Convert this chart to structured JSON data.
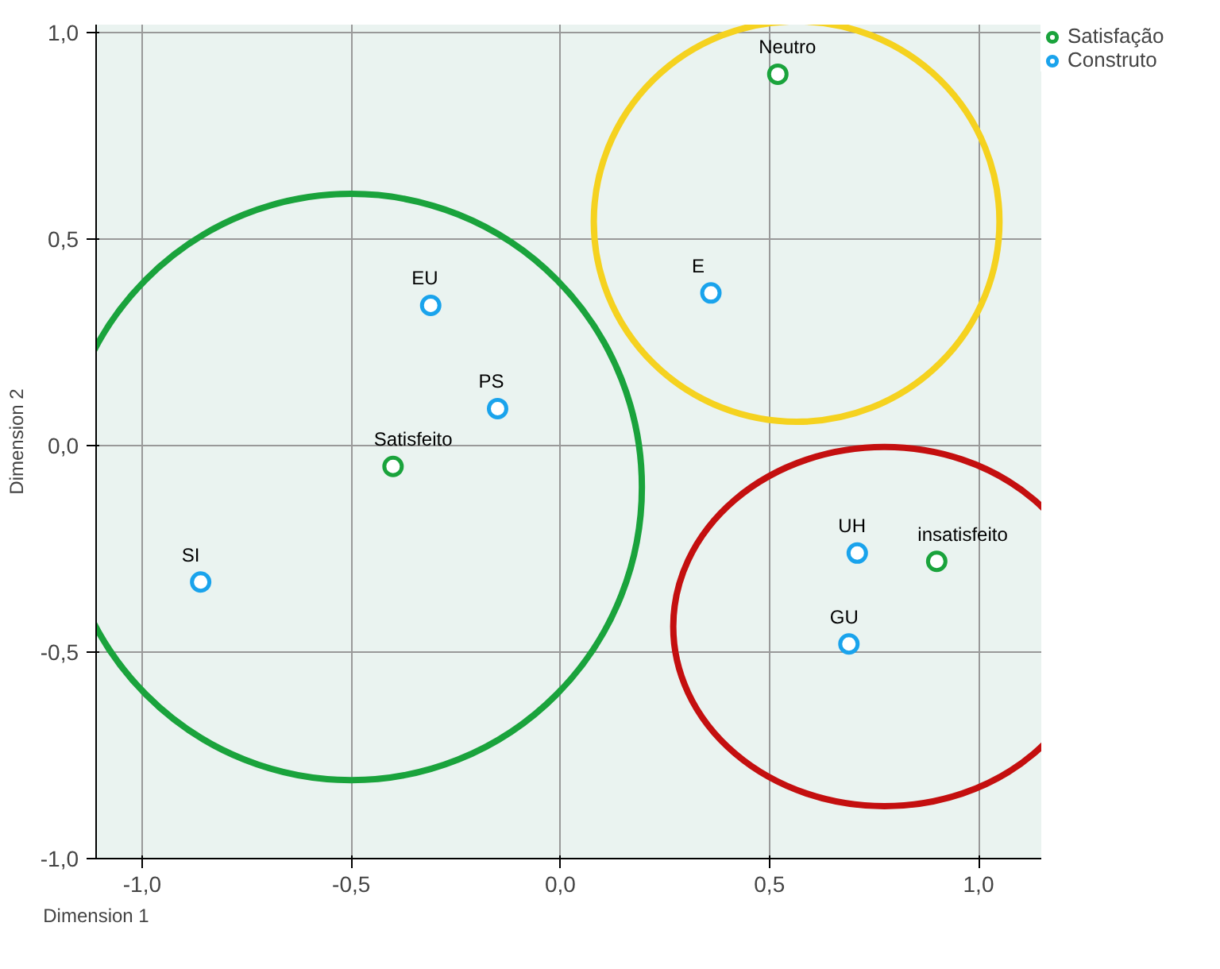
{
  "chart_data": {
    "type": "scatter",
    "xlabel": "Dimension 1",
    "ylabel": "Dimension 2",
    "xlim": [
      -1.11,
      1.15
    ],
    "ylim": [
      -1.0,
      1.02
    ],
    "xticks": [
      {
        "value": -1.0,
        "label": "-1,0"
      },
      {
        "value": -0.5,
        "label": "-0,5"
      },
      {
        "value": 0.0,
        "label": "0,0"
      },
      {
        "value": 0.5,
        "label": "0,5"
      },
      {
        "value": 1.0,
        "label": "1,0"
      }
    ],
    "yticks": [
      {
        "value": -1.0,
        "label": "-1,0"
      },
      {
        "value": -0.5,
        "label": "-0,5"
      },
      {
        "value": 0.0,
        "label": "0,0"
      },
      {
        "value": 0.5,
        "label": "0,5"
      },
      {
        "value": 1.0,
        "label": "1,0"
      }
    ],
    "grid": true,
    "legend": "top right",
    "marker": "circle",
    "series": [
      {
        "name": "Satisfação",
        "color": "#1aa33c",
        "x": [
          0.52,
          -0.4,
          0.9
        ],
        "values": [
          0.9,
          -0.05,
          -0.28
        ]
      },
      {
        "name": "Construto",
        "color": "#1aa3ec",
        "x": [
          0.36,
          -0.31,
          -0.15,
          -0.86,
          0.71,
          0.69
        ],
        "values": [
          0.37,
          0.34,
          0.09,
          -0.33,
          -0.26,
          -0.48
        ]
      }
    ],
    "annotations": [
      {
        "text": "Neutro",
        "x": 0.52,
        "y": 0.9
      },
      {
        "text": "Satisfeito",
        "x": -0.4,
        "y": -0.05
      },
      {
        "text": "insatisfeito",
        "x": 0.9,
        "y": -0.28
      },
      {
        "text": "E",
        "x": 0.36,
        "y": 0.37
      },
      {
        "text": "EU",
        "x": -0.31,
        "y": 0.34
      },
      {
        "text": "PS",
        "x": -0.15,
        "y": 0.09
      },
      {
        "text": "SI",
        "x": -0.86,
        "y": -0.33
      },
      {
        "text": "UH",
        "x": 0.71,
        "y": -0.26
      },
      {
        "text": "GU",
        "x": 0.69,
        "y": -0.48
      }
    ]
  }
}
